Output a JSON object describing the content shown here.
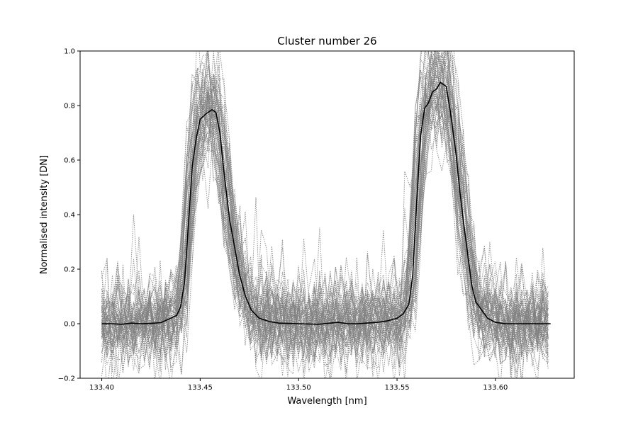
{
  "chart_data": {
    "type": "line",
    "title": "Cluster number 26",
    "xlabel": "Wavelength [nm]",
    "ylabel": "Normalised intensity [DN]",
    "xlim": [
      133.389,
      133.64
    ],
    "ylim": [
      -0.2,
      1.0
    ],
    "x_ticks": [
      "133.40",
      "133.45",
      "133.50",
      "133.55",
      "133.60"
    ],
    "y_ticks": [
      "−0.2",
      "0.0",
      "0.2",
      "0.4",
      "0.6",
      "0.8",
      "1.0"
    ],
    "grid": false,
    "colors": {
      "mean": "#000000",
      "members": "#808080"
    },
    "members": {
      "count": 60,
      "style": "dotted",
      "description_values_range": "individual normalised profiles scatter around the mean with noise of about ±0.2"
    },
    "series": [
      {
        "x": [
          133.4,
          133.405,
          133.41,
          133.415,
          133.42,
          133.425,
          133.43,
          133.435,
          133.438,
          133.44,
          133.442,
          133.444,
          133.446,
          133.448,
          133.45,
          133.453,
          133.456,
          133.458,
          133.46,
          133.462,
          133.465,
          133.468,
          133.47,
          133.473,
          133.476,
          133.48,
          133.485,
          133.49,
          133.5,
          133.51,
          133.52,
          133.525,
          133.53,
          133.54,
          133.545,
          133.55,
          133.553,
          133.556,
          133.558,
          133.56,
          133.562,
          133.564,
          133.566,
          133.568,
          133.57,
          133.572,
          133.575,
          133.577,
          133.58,
          133.582,
          133.584,
          133.586,
          133.588,
          133.59,
          133.593,
          133.596,
          133.6,
          133.605,
          133.61,
          133.62,
          133.628
        ],
        "values": [
          0.0,
          0.0,
          -0.002,
          0.002,
          0.0,
          0.001,
          0.004,
          0.02,
          0.03,
          0.06,
          0.15,
          0.36,
          0.58,
          0.68,
          0.75,
          0.77,
          0.785,
          0.775,
          0.7,
          0.56,
          0.38,
          0.26,
          0.18,
          0.1,
          0.05,
          0.02,
          0.008,
          0.002,
          0.0,
          -0.002,
          0.005,
          0.0,
          0.0,
          0.005,
          0.01,
          0.02,
          0.035,
          0.07,
          0.18,
          0.45,
          0.69,
          0.79,
          0.81,
          0.85,
          0.86,
          0.885,
          0.87,
          0.78,
          0.62,
          0.48,
          0.36,
          0.25,
          0.14,
          0.08,
          0.05,
          0.02,
          0.005,
          0.0,
          0.0,
          0.0,
          0.0
        ]
      }
    ]
  }
}
